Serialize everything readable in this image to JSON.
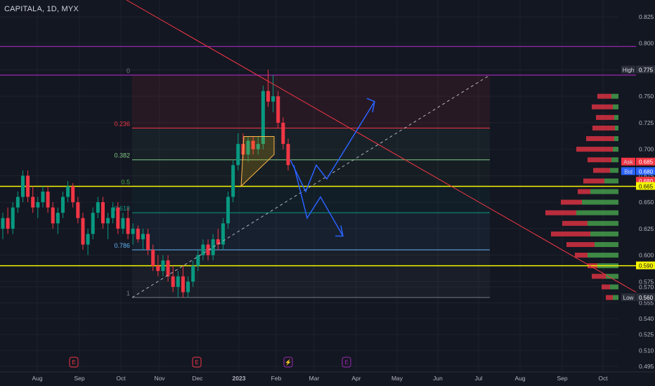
{
  "header": {
    "symbol": "CAPITALA, 1D, MYX"
  },
  "chart_data": {
    "type": "candlestick",
    "symbol": "CAPITALA",
    "interval": "1D",
    "exchange": "MYX",
    "ylim": [
      0.49,
      0.83
    ],
    "y_ticks": [
      "0.825",
      "0.800",
      "0.775",
      "0.750",
      "0.725",
      "0.700",
      "0.675",
      "0.650",
      "0.625",
      "0.600",
      "0.575",
      "0.570",
      "0.555",
      "0.540",
      "0.525",
      "0.510",
      "0.495"
    ],
    "y_tick_values": [
      0.825,
      0.8,
      0.775,
      0.75,
      0.725,
      0.7,
      0.675,
      0.65,
      0.625,
      0.6,
      0.575,
      0.57,
      0.555,
      0.54,
      0.525,
      0.51,
      0.495
    ],
    "x_ticks": [
      "Aug",
      "Sep",
      "Oct",
      "Nov",
      "Dec",
      "2023",
      "Feb",
      "Mar",
      "Apr",
      "May",
      "Jun",
      "Jul",
      "Aug",
      "Sep",
      "Oct"
    ],
    "price_tags": [
      {
        "label": "High",
        "value": "0.775",
        "color": "#2a2e39"
      },
      {
        "label": "Ask",
        "value": "0.685",
        "color": "#f23645"
      },
      {
        "label": "Bid",
        "value": "0.680",
        "color": "#2962ff"
      },
      {
        "label": "",
        "value": "0.680",
        "color": "#f23645"
      },
      {
        "label": "",
        "value": "0.665",
        "color": "#f5f500"
      },
      {
        "label": "",
        "value": "0.590",
        "color": "#f5f500"
      },
      {
        "label": "Low",
        "value": "0.560",
        "color": "#2a2e39"
      }
    ],
    "fibonacci": {
      "high": 0.77,
      "low": 0.56,
      "levels": [
        {
          "ratio": "0",
          "value": 0.77,
          "color": "#787b86"
        },
        {
          "ratio": "0.236",
          "value": 0.72,
          "color": "#f23645"
        },
        {
          "ratio": "0.382",
          "value": 0.69,
          "color": "#81c784"
        },
        {
          "ratio": "0.5",
          "value": 0.665,
          "color": "#4caf50"
        },
        {
          "ratio": "0.618",
          "value": 0.64,
          "color": "#089981"
        },
        {
          "ratio": "0.786",
          "value": 0.605,
          "color": "#64b5f6"
        },
        {
          "ratio": "1",
          "value": 0.56,
          "color": "#787b86"
        }
      ]
    },
    "horizontal_lines": [
      {
        "value": 0.797,
        "color": "#9c27b0"
      },
      {
        "value": 0.77,
        "color": "#9c27b0"
      },
      {
        "value": 0.665,
        "color": "#f5f500"
      },
      {
        "value": 0.59,
        "color": "#f5f500"
      }
    ],
    "events": [
      "E",
      "E",
      "flash",
      "E"
    ],
    "candles": [
      [
        0.625,
        0.64,
        0.615,
        0.635
      ],
      [
        0.635,
        0.645,
        0.62,
        0.625
      ],
      [
        0.625,
        0.65,
        0.62,
        0.645
      ],
      [
        0.645,
        0.66,
        0.64,
        0.655
      ],
      [
        0.655,
        0.68,
        0.65,
        0.675
      ],
      [
        0.675,
        0.68,
        0.65,
        0.655
      ],
      [
        0.655,
        0.665,
        0.64,
        0.645
      ],
      [
        0.645,
        0.655,
        0.635,
        0.65
      ],
      [
        0.65,
        0.665,
        0.645,
        0.66
      ],
      [
        0.66,
        0.665,
        0.64,
        0.645
      ],
      [
        0.645,
        0.65,
        0.625,
        0.63
      ],
      [
        0.63,
        0.645,
        0.62,
        0.64
      ],
      [
        0.64,
        0.66,
        0.635,
        0.655
      ],
      [
        0.655,
        0.67,
        0.65,
        0.665
      ],
      [
        0.665,
        0.668,
        0.645,
        0.65
      ],
      [
        0.65,
        0.655,
        0.63,
        0.635
      ],
      [
        0.635,
        0.64,
        0.605,
        0.61
      ],
      [
        0.61,
        0.625,
        0.6,
        0.62
      ],
      [
        0.62,
        0.645,
        0.615,
        0.64
      ],
      [
        0.64,
        0.655,
        0.635,
        0.65
      ],
      [
        0.65,
        0.655,
        0.625,
        0.63
      ],
      [
        0.63,
        0.64,
        0.615,
        0.635
      ],
      [
        0.635,
        0.65,
        0.63,
        0.645
      ],
      [
        0.645,
        0.65,
        0.62,
        0.625
      ],
      [
        0.625,
        0.64,
        0.62,
        0.635
      ],
      [
        0.635,
        0.645,
        0.615,
        0.62
      ],
      [
        0.62,
        0.63,
        0.61,
        0.625
      ],
      [
        0.625,
        0.628,
        0.612,
        0.615
      ],
      [
        0.615,
        0.625,
        0.605,
        0.62
      ],
      [
        0.62,
        0.625,
        0.6,
        0.605
      ],
      [
        0.605,
        0.61,
        0.585,
        0.59
      ],
      [
        0.59,
        0.6,
        0.58,
        0.585
      ],
      [
        0.585,
        0.6,
        0.58,
        0.595
      ],
      [
        0.595,
        0.6,
        0.575,
        0.58
      ],
      [
        0.58,
        0.59,
        0.565,
        0.57
      ],
      [
        0.57,
        0.585,
        0.56,
        0.58
      ],
      [
        0.58,
        0.59,
        0.56,
        0.565
      ],
      [
        0.565,
        0.58,
        0.56,
        0.575
      ],
      [
        0.575,
        0.595,
        0.57,
        0.59
      ],
      [
        0.59,
        0.605,
        0.585,
        0.6
      ],
      [
        0.6,
        0.615,
        0.595,
        0.61
      ],
      [
        0.61,
        0.615,
        0.595,
        0.6
      ],
      [
        0.6,
        0.62,
        0.595,
        0.615
      ],
      [
        0.615,
        0.625,
        0.605,
        0.61
      ],
      [
        0.61,
        0.635,
        0.605,
        0.63
      ],
      [
        0.63,
        0.66,
        0.625,
        0.655
      ],
      [
        0.655,
        0.69,
        0.65,
        0.685
      ],
      [
        0.685,
        0.715,
        0.68,
        0.705
      ],
      [
        0.705,
        0.715,
        0.69,
        0.695
      ],
      [
        0.695,
        0.712,
        0.688,
        0.708
      ],
      [
        0.708,
        0.712,
        0.695,
        0.7
      ],
      [
        0.7,
        0.712,
        0.695,
        0.705
      ],
      [
        0.705,
        0.76,
        0.7,
        0.755
      ],
      [
        0.755,
        0.775,
        0.74,
        0.745
      ],
      [
        0.745,
        0.77,
        0.735,
        0.75
      ],
      [
        0.75,
        0.755,
        0.72,
        0.725
      ],
      [
        0.725,
        0.73,
        0.7,
        0.705
      ],
      [
        0.705,
        0.71,
        0.68,
        0.685
      ]
    ],
    "volume_profile": [
      {
        "price": 0.75,
        "buy": 10,
        "sell": 20
      },
      {
        "price": 0.74,
        "buy": 8,
        "sell": 30
      },
      {
        "price": 0.73,
        "buy": 6,
        "sell": 26
      },
      {
        "price": 0.72,
        "buy": 5,
        "sell": 32
      },
      {
        "price": 0.71,
        "buy": 6,
        "sell": 40
      },
      {
        "price": 0.7,
        "buy": 8,
        "sell": 52
      },
      {
        "price": 0.69,
        "buy": 10,
        "sell": 34
      },
      {
        "price": 0.68,
        "buy": 12,
        "sell": 24
      },
      {
        "price": 0.67,
        "buy": 20,
        "sell": 30
      },
      {
        "price": 0.66,
        "buy": 40,
        "sell": 18
      },
      {
        "price": 0.65,
        "buy": 52,
        "sell": 30
      },
      {
        "price": 0.64,
        "buy": 60,
        "sell": 44
      },
      {
        "price": 0.63,
        "buy": 44,
        "sell": 36
      },
      {
        "price": 0.62,
        "buy": 40,
        "sell": 56
      },
      {
        "price": 0.61,
        "buy": 34,
        "sell": 40
      },
      {
        "price": 0.6,
        "buy": 44,
        "sell": 18
      },
      {
        "price": 0.59,
        "buy": 30,
        "sell": 14
      },
      {
        "price": 0.58,
        "buy": 18,
        "sell": 20
      },
      {
        "price": 0.57,
        "buy": 12,
        "sell": 12
      },
      {
        "price": 0.56,
        "buy": 8,
        "sell": 10
      }
    ],
    "trendlines": [
      {
        "kind": "resistance",
        "from": [
          "Jul",
          0.83
        ],
        "to": [
          "Oct",
          0.565
        ],
        "color": "#f23645"
      },
      {
        "kind": "dashed-support",
        "from": [
          "Nov",
          0.56
        ],
        "to": [
          "Jul",
          0.77
        ],
        "color": "#b2b5be"
      }
    ]
  }
}
